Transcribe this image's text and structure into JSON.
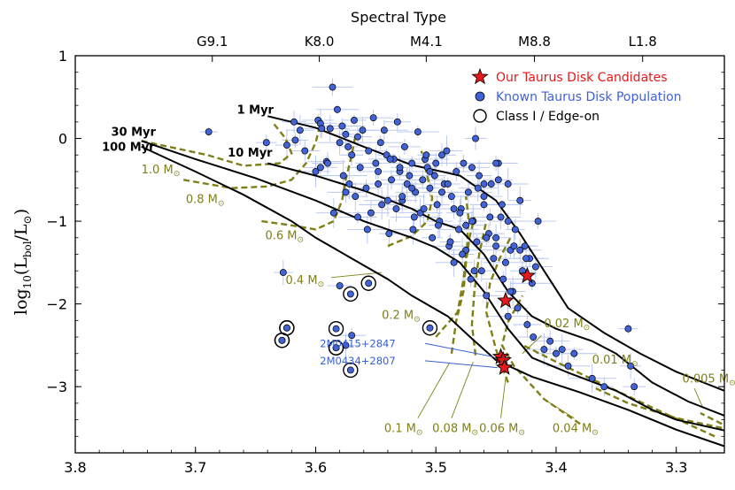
{
  "chart_data": {
    "type": "scatter",
    "title": "",
    "xlabel": "",
    "ylabel": "log10(Lbol/L⊙)",
    "ylabel_main": "log",
    "ylabel_sub": "10",
    "ylabel_paren": "(L",
    "ylabel_bol": "bol",
    "ylabel_slash": "/L",
    "ylabel_sun": "⊙",
    "ylabel_close": ")",
    "xlim": [
      3.8,
      3.26
    ],
    "ylim": [
      -3.8,
      1.0
    ],
    "x_ticks": [
      "3.8",
      "3.7",
      "3.6",
      "3.5",
      "3.4",
      "3.3"
    ],
    "y_ticks": [
      "1",
      "0",
      "−1",
      "−2",
      "−3"
    ],
    "top_axis": {
      "label": "Spectral Type",
      "ticks": [
        {
          "logT": 3.686,
          "label": "G9.1"
        },
        {
          "logT": 3.597,
          "label": "K8.0"
        },
        {
          "logT": 3.508,
          "label": "M4.1"
        },
        {
          "logT": 3.418,
          "label": "M8.8"
        },
        {
          "logT": 3.328,
          "label": "L1.8"
        }
      ]
    },
    "legend": {
      "position": "top-right",
      "entries": [
        {
          "label": "Our Taurus Disk Candidates",
          "marker": "star",
          "color": "#e31a1c"
        },
        {
          "label": "Known Taurus Disk Population",
          "marker": "circle",
          "color": "#4060d8"
        },
        {
          "label": "Class I / Edge-on",
          "marker": "ring",
          "color": "#000000"
        }
      ]
    },
    "colors": {
      "isochrone": "#000000",
      "track": "#7f7f16",
      "known": "#4263d6",
      "candidate": "#e31a1c",
      "errorbar": "#b4c4f0",
      "annotation": "#3a5fd0"
    },
    "isochrones": [
      {
        "name": "1 Myr",
        "label_at": [
          3.635,
          0.3
        ],
        "points": [
          [
            3.64,
            0.27
          ],
          [
            3.6,
            0.13
          ],
          [
            3.56,
            -0.1
          ],
          [
            3.52,
            -0.32
          ],
          [
            3.48,
            -0.45
          ],
          [
            3.45,
            -0.75
          ],
          [
            3.43,
            -1.15
          ],
          [
            3.41,
            -1.6
          ],
          [
            3.39,
            -2.05
          ],
          [
            3.36,
            -2.35
          ],
          [
            3.33,
            -2.6
          ],
          [
            3.3,
            -2.82
          ],
          [
            3.26,
            -3.05
          ]
        ]
      },
      {
        "name": "10 Myr",
        "label_at": [
          3.636,
          -0.22
        ],
        "points": [
          [
            3.64,
            -0.3
          ],
          [
            3.6,
            -0.45
          ],
          [
            3.56,
            -0.63
          ],
          [
            3.52,
            -0.85
          ],
          [
            3.5,
            -1.0
          ],
          [
            3.48,
            -1.1
          ],
          [
            3.46,
            -1.4
          ],
          [
            3.44,
            -1.85
          ],
          [
            3.42,
            -2.15
          ],
          [
            3.4,
            -2.3
          ],
          [
            3.37,
            -2.45
          ],
          [
            3.35,
            -2.6
          ],
          [
            3.32,
            -2.95
          ],
          [
            3.29,
            -3.18
          ],
          [
            3.26,
            -3.35
          ]
        ]
      },
      {
        "name": "30 Myr",
        "label_at": [
          3.733,
          0.03
        ],
        "points": [
          [
            3.745,
            -0.03
          ],
          [
            3.7,
            -0.25
          ],
          [
            3.65,
            -0.48
          ],
          [
            3.6,
            -0.75
          ],
          [
            3.56,
            -1.0
          ],
          [
            3.52,
            -1.2
          ],
          [
            3.5,
            -1.32
          ],
          [
            3.48,
            -1.5
          ],
          [
            3.46,
            -1.85
          ],
          [
            3.44,
            -2.3
          ],
          [
            3.42,
            -2.65
          ],
          [
            3.39,
            -2.83
          ],
          [
            3.35,
            -3.05
          ],
          [
            3.32,
            -3.28
          ],
          [
            3.3,
            -3.4
          ],
          [
            3.26,
            -3.53
          ]
        ]
      },
      {
        "name": "100 Myr",
        "label_at": [
          3.734,
          -0.15
        ],
        "points": [
          [
            3.745,
            -0.1
          ],
          [
            3.7,
            -0.4
          ],
          [
            3.66,
            -0.68
          ],
          [
            3.62,
            -1.0
          ],
          [
            3.6,
            -1.2
          ],
          [
            3.57,
            -1.45
          ],
          [
            3.54,
            -1.7
          ],
          [
            3.52,
            -1.9
          ],
          [
            3.49,
            -2.15
          ],
          [
            3.47,
            -2.42
          ],
          [
            3.45,
            -2.68
          ],
          [
            3.42,
            -2.88
          ],
          [
            3.38,
            -3.07
          ],
          [
            3.34,
            -3.28
          ],
          [
            3.3,
            -3.52
          ],
          [
            3.26,
            -3.72
          ]
        ]
      }
    ],
    "tracks": [
      {
        "name": "1.0 M⊙",
        "label": "1.0 M",
        "label_at": [
          3.745,
          -0.42
        ],
        "points": [
          [
            3.745,
            -0.03
          ],
          [
            3.69,
            -0.2
          ],
          [
            3.66,
            -0.33
          ],
          [
            3.63,
            -0.3
          ],
          [
            3.62,
            -0.18
          ],
          [
            3.625,
            0.0
          ],
          [
            3.635,
            0.18
          ]
        ]
      },
      {
        "name": "0.8 M⊙",
        "label": "0.8 M",
        "label_at": [
          3.708,
          -0.78
        ],
        "points": [
          [
            3.71,
            -0.5
          ],
          [
            3.69,
            -0.55
          ],
          [
            3.67,
            -0.6
          ],
          [
            3.64,
            -0.58
          ],
          [
            3.62,
            -0.5
          ],
          [
            3.608,
            -0.3
          ],
          [
            3.6,
            -0.05
          ],
          [
            3.597,
            0.13
          ]
        ]
      },
      {
        "name": "0.6 M⊙",
        "label": "0.6 M",
        "label_at": [
          3.642,
          -1.22
        ],
        "points": [
          [
            3.645,
            -1.0
          ],
          [
            3.62,
            -1.05
          ],
          [
            3.6,
            -1.1
          ],
          [
            3.585,
            -1.0
          ],
          [
            3.578,
            -0.75
          ],
          [
            3.575,
            -0.5
          ],
          [
            3.57,
            -0.2
          ],
          [
            3.567,
            0.03
          ]
        ]
      },
      {
        "name": "0.4 M⊙",
        "label": "0.4 M",
        "label_at": [
          3.625,
          -1.76
        ],
        "leader": [
          [
            3.587,
            -1.68
          ],
          [
            3.545,
            -1.62
          ]
        ],
        "points": [
          [
            3.54,
            -1.3
          ],
          [
            3.52,
            -1.18
          ],
          [
            3.507,
            -1.0
          ],
          [
            3.503,
            -0.72
          ],
          [
            3.508,
            -0.4
          ],
          [
            3.512,
            -0.15
          ]
        ]
      },
      {
        "name": "0.2 M⊙",
        "label": "0.2 M",
        "label_at": [
          3.545,
          -2.18
        ],
        "points": [
          [
            3.5,
            -2.4
          ],
          [
            3.482,
            -2.1
          ],
          [
            3.477,
            -1.7
          ],
          [
            3.474,
            -1.3
          ],
          [
            3.473,
            -0.95
          ],
          [
            3.475,
            -0.7
          ]
        ]
      },
      {
        "name": "0.1 M⊙",
        "label": "0.1 M",
        "label_at": [
          3.543,
          -3.55
        ],
        "leader": [
          [
            3.515,
            -3.38
          ],
          [
            3.489,
            -2.72
          ]
        ],
        "points": [
          [
            3.487,
            -2.6
          ],
          [
            3.483,
            -2.2
          ],
          [
            3.477,
            -1.85
          ],
          [
            3.475,
            -1.5
          ],
          [
            3.472,
            -1.2
          ],
          [
            3.468,
            -0.95
          ]
        ]
      },
      {
        "name": "0.08 M⊙",
        "label": "0.08 M",
        "label_at": [
          3.503,
          -3.55
        ],
        "leader": [
          [
            3.487,
            -3.38
          ],
          [
            3.469,
            -2.7
          ]
        ],
        "points": [
          [
            3.467,
            -2.62
          ],
          [
            3.47,
            -2.25
          ],
          [
            3.468,
            -1.85
          ],
          [
            3.464,
            -1.4
          ],
          [
            3.458,
            -1.0
          ]
        ]
      },
      {
        "name": "0.06 M⊙",
        "label": "0.06 M",
        "label_at": [
          3.464,
          -3.55
        ],
        "leader": [
          [
            3.446,
            -3.38
          ],
          [
            3.442,
            -2.9
          ]
        ],
        "points": [
          [
            3.44,
            -2.95
          ],
          [
            3.45,
            -2.55
          ],
          [
            3.458,
            -2.1
          ],
          [
            3.455,
            -1.75
          ],
          [
            3.447,
            -1.45
          ],
          [
            3.438,
            -1.2
          ]
        ]
      },
      {
        "name": "0.04 M⊙",
        "label": "0.04 M",
        "label_at": [
          3.403,
          -3.55
        ],
        "leader": [
          [
            3.385,
            -3.38
          ],
          [
            3.408,
            -3.17
          ]
        ],
        "points": [
          [
            3.38,
            -3.45
          ],
          [
            3.41,
            -3.15
          ],
          [
            3.435,
            -2.75
          ],
          [
            3.445,
            -2.5
          ],
          [
            3.44,
            -2.22
          ],
          [
            3.428,
            -1.9
          ]
        ]
      },
      {
        "name": "0.02 M⊙",
        "label": "0.02 M",
        "label_at": [
          3.41,
          -2.28
        ],
        "leader": [
          [
            3.412,
            -2.38
          ],
          [
            3.428,
            -2.6
          ]
        ],
        "points": [
          [
            3.268,
            -3.6
          ],
          [
            3.31,
            -3.32
          ],
          [
            3.36,
            -2.98
          ],
          [
            3.4,
            -2.7
          ],
          [
            3.43,
            -2.48
          ]
        ]
      },
      {
        "name": "0.01 M⊙",
        "label": "0.01 M",
        "label_at": [
          3.37,
          -2.72
        ],
        "points": [
          [
            3.262,
            -3.5
          ],
          [
            3.3,
            -3.38
          ],
          [
            3.34,
            -3.2
          ],
          [
            3.37,
            -3.0
          ]
        ]
      },
      {
        "name": "0.005 M⊙",
        "label": "0.005 M",
        "label_at": [
          3.295,
          -2.95
        ],
        "leader": [
          [
            3.285,
            -3.02
          ],
          [
            3.278,
            -3.25
          ]
        ],
        "points": [
          [
            3.262,
            -3.45
          ],
          [
            3.28,
            -3.32
          ]
        ]
      }
    ],
    "known": {
      "x": [
        3.689,
        3.627,
        3.641,
        3.624,
        3.618,
        3.617,
        3.613,
        3.609,
        3.598,
        3.596,
        3.595,
        3.591,
        3.588,
        3.586,
        3.582,
        3.58,
        3.578,
        3.577,
        3.575,
        3.573,
        3.572,
        3.57,
        3.568,
        3.567,
        3.565,
        3.563,
        3.561,
        3.558,
        3.556,
        3.554,
        3.552,
        3.55,
        3.548,
        3.546,
        3.545,
        3.543,
        3.541,
        3.539,
        3.537,
        3.535,
        3.533,
        3.532,
        3.53,
        3.528,
        3.526,
        3.524,
        3.522,
        3.52,
        3.519,
        3.517,
        3.515,
        3.513,
        3.511,
        3.509,
        3.507,
        3.505,
        3.503,
        3.501,
        3.499,
        3.497,
        3.495,
        3.493,
        3.491,
        3.489,
        3.487,
        3.485,
        3.483,
        3.481,
        3.479,
        3.477,
        3.475,
        3.473,
        3.471,
        3.469,
        3.467,
        3.466,
        3.464,
        3.462,
        3.46,
        3.458,
        3.456,
        3.454,
        3.452,
        3.45,
        3.448,
        3.446,
        3.444,
        3.442,
        3.44,
        3.438,
        3.436,
        3.434,
        3.432,
        3.43,
        3.428,
        3.426,
        3.424,
        3.422,
        3.419,
        3.417,
        3.415,
        3.41,
        3.405,
        3.4,
        3.395,
        3.39,
        3.385,
        3.37,
        3.36,
        3.34,
        3.338,
        3.335,
        3.58,
        3.575,
        3.57,
        3.6,
        3.59,
        3.596,
        3.585,
        3.575,
        3.565,
        3.557,
        3.548,
        3.538,
        3.528,
        3.518,
        3.508,
        3.498,
        3.488,
        3.478,
        3.468,
        3.458,
        3.448,
        3.438,
        3.505,
        3.495,
        3.485,
        3.475,
        3.465,
        3.455,
        3.445,
        3.435,
        3.425,
        3.54,
        3.53,
        3.52,
        3.51,
        3.5,
        3.49,
        3.48,
        3.47,
        3.46,
        3.45,
        3.44,
        3.47,
        3.46,
        3.45,
        3.44,
        3.43,
        3.42
      ],
      "y": [
        0.08,
        -1.62,
        -0.05,
        -0.08,
        0.2,
        -0.02,
        0.1,
        -0.15,
        0.22,
        0.18,
        0.12,
        -0.28,
        0.12,
        0.62,
        0.35,
        -0.05,
        0.15,
        -0.45,
        0.05,
        -0.1,
        -0.55,
        -0.2,
        0.22,
        -0.7,
        0.02,
        -0.35,
        0.1,
        -0.6,
        -0.15,
        -0.9,
        0.25,
        -0.3,
        -0.55,
        -0.05,
        -0.8,
        0.1,
        -0.2,
        -1.15,
        -0.5,
        -0.25,
        -0.85,
        0.2,
        -0.4,
        -0.75,
        -0.1,
        -0.55,
        -0.45,
        -0.3,
        -1.1,
        -0.65,
        0.08,
        -0.9,
        -0.5,
        -0.25,
        -0.35,
        -0.6,
        -1.2,
        -0.45,
        -0.8,
        -1.0,
        -0.2,
        -0.55,
        -0.15,
        -1.3,
        -0.7,
        -1.5,
        -0.4,
        -1.1,
        -0.85,
        -0.3,
        -1.35,
        -0.65,
        -1.7,
        -1.0,
        0.0,
        -1.25,
        -0.45,
        -1.6,
        -0.8,
        -1.9,
        -1.15,
        -0.55,
        -1.45,
        -1.3,
        -0.3,
        -0.95,
        -1.7,
        -1.5,
        -2.15,
        -1.35,
        -1.85,
        -1.1,
        -2.05,
        -0.75,
        -1.6,
        -1.3,
        -2.25,
        -1.45,
        -2.4,
        -1.55,
        -1.0,
        -2.55,
        -2.45,
        -2.6,
        -2.55,
        -2.75,
        -2.6,
        -2.9,
        -3.0,
        -2.3,
        -2.75,
        -3.0,
        -1.78,
        -2.5,
        -2.38,
        -0.4,
        -0.3,
        -0.35,
        -0.9,
        -0.65,
        -0.95,
        -1.1,
        -0.4,
        -0.25,
        -0.7,
        -0.95,
        -0.2,
        -1.05,
        -1.25,
        -1.4,
        -1.6,
        -1.2,
        -0.5,
        -1.85,
        -0.4,
        -0.65,
        -0.85,
        -1.05,
        -0.6,
        -0.95,
        -0.8,
        -1.3,
        -1.45,
        -0.75,
        -0.35,
        -0.6,
        -0.85,
        -0.3,
        -0.55,
        -0.9,
        -1.0,
        -0.55,
        -1.2,
        -1.0,
        -0.35,
        -0.7,
        -0.3,
        -0.55,
        -1.35,
        -1.75
      ]
    },
    "class_i": {
      "x": [
        3.628,
        3.624,
        3.583,
        3.583,
        3.571,
        3.556,
        3.583,
        3.505,
        3.571,
        3.628,
        3.624
      ],
      "y": [
        -2.44,
        -2.29,
        -2.3,
        -2.53,
        -1.88,
        -1.75,
        -2.53,
        -2.29,
        -2.8,
        -2.44,
        -2.29
      ]
    },
    "candidates": {
      "x": [
        3.424,
        3.442,
        3.446,
        3.444,
        3.443
      ],
      "y": [
        -1.66,
        -1.96,
        -2.64,
        -2.68,
        -2.77
      ],
      "labels": [
        "2M0415+2847",
        "2M0434+2807"
      ],
      "label_targets": [
        [
          3.446,
          -2.64
        ],
        [
          3.443,
          -2.77
        ]
      ],
      "label_at": [
        [
          3.565,
          -2.52
        ],
        [
          3.565,
          -2.73
        ]
      ]
    }
  }
}
